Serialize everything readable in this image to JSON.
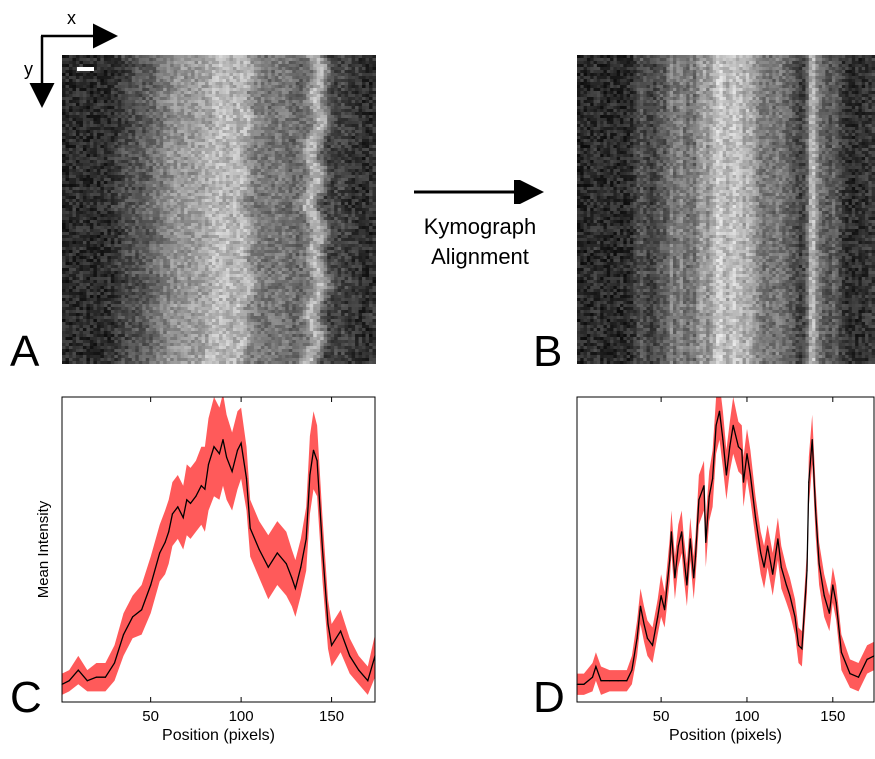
{
  "axes_indicator": {
    "x_label": "x",
    "y_label": "y"
  },
  "alignment_arrow": {
    "line1": "Kymograph",
    "line2": "Alignment"
  },
  "panels": {
    "A": "A",
    "B": "B",
    "C": "C",
    "D": "D"
  },
  "kymographs": {
    "A": {
      "aligned": false
    },
    "B": {
      "aligned": true
    }
  },
  "colors": {
    "band": "#ff5a5a",
    "mean_line": "#000000",
    "axes": "#000000"
  },
  "chart_data": [
    {
      "panel": "C",
      "type": "line",
      "xlabel": "Position (pixels)",
      "ylabel": "Mean Intensity",
      "xlim": [
        1,
        174
      ],
      "xticks": [
        50,
        100,
        150
      ],
      "x": [
        1,
        5,
        10,
        15,
        20,
        25,
        30,
        35,
        40,
        45,
        50,
        55,
        58,
        60,
        62,
        65,
        68,
        70,
        72,
        75,
        78,
        80,
        82,
        85,
        88,
        90,
        92,
        95,
        98,
        100,
        103,
        105,
        110,
        115,
        120,
        125,
        128,
        130,
        133,
        136,
        138,
        140,
        142,
        145,
        148,
        150,
        155,
        160,
        165,
        170,
        174
      ],
      "y": [
        0.05,
        0.06,
        0.09,
        0.06,
        0.07,
        0.07,
        0.11,
        0.19,
        0.24,
        0.26,
        0.33,
        0.42,
        0.45,
        0.48,
        0.53,
        0.55,
        0.52,
        0.57,
        0.56,
        0.58,
        0.61,
        0.6,
        0.67,
        0.72,
        0.7,
        0.74,
        0.69,
        0.65,
        0.71,
        0.73,
        0.63,
        0.49,
        0.43,
        0.38,
        0.42,
        0.39,
        0.35,
        0.32,
        0.38,
        0.46,
        0.64,
        0.71,
        0.68,
        0.43,
        0.22,
        0.16,
        0.2,
        0.13,
        0.09,
        0.06,
        0.13
      ],
      "band": [
        0.03,
        0.03,
        0.04,
        0.03,
        0.04,
        0.04,
        0.05,
        0.06,
        0.06,
        0.07,
        0.08,
        0.08,
        0.09,
        0.09,
        0.09,
        0.09,
        0.09,
        0.1,
        0.1,
        0.1,
        0.11,
        0.12,
        0.13,
        0.14,
        0.13,
        0.13,
        0.12,
        0.11,
        0.11,
        0.1,
        0.09,
        0.08,
        0.08,
        0.09,
        0.09,
        0.09,
        0.08,
        0.08,
        0.08,
        0.09,
        0.11,
        0.11,
        0.1,
        0.09,
        0.07,
        0.06,
        0.06,
        0.05,
        0.04,
        0.04,
        0.06
      ]
    },
    {
      "panel": "D",
      "type": "line",
      "xlabel": "Position (pixels)",
      "ylabel": "",
      "xlim": [
        1,
        174
      ],
      "xticks": [
        50,
        100,
        150
      ],
      "x": [
        1,
        5,
        10,
        12,
        15,
        20,
        25,
        30,
        33,
        36,
        38,
        40,
        42,
        45,
        48,
        50,
        52,
        55,
        56,
        58,
        60,
        62,
        63,
        65,
        67,
        69,
        70,
        72,
        75,
        76,
        78,
        80,
        82,
        84,
        86,
        88,
        90,
        92,
        95,
        97,
        98,
        100,
        102,
        105,
        108,
        110,
        112,
        115,
        118,
        120,
        123,
        125,
        128,
        130,
        132,
        135,
        136,
        138,
        140,
        142,
        145,
        148,
        150,
        152,
        155,
        160,
        165,
        170,
        174
      ],
      "y": [
        0.05,
        0.05,
        0.07,
        0.1,
        0.06,
        0.06,
        0.06,
        0.06,
        0.09,
        0.18,
        0.27,
        0.22,
        0.18,
        0.16,
        0.24,
        0.3,
        0.26,
        0.4,
        0.48,
        0.35,
        0.44,
        0.48,
        0.42,
        0.33,
        0.46,
        0.35,
        0.41,
        0.57,
        0.61,
        0.45,
        0.58,
        0.63,
        0.78,
        0.82,
        0.74,
        0.64,
        0.72,
        0.78,
        0.72,
        0.71,
        0.62,
        0.7,
        0.64,
        0.52,
        0.42,
        0.38,
        0.44,
        0.36,
        0.46,
        0.38,
        0.33,
        0.3,
        0.24,
        0.16,
        0.15,
        0.37,
        0.62,
        0.74,
        0.54,
        0.39,
        0.3,
        0.25,
        0.33,
        0.28,
        0.14,
        0.08,
        0.07,
        0.12,
        0.13
      ],
      "band": [
        0.03,
        0.03,
        0.04,
        0.04,
        0.04,
        0.03,
        0.03,
        0.03,
        0.04,
        0.05,
        0.05,
        0.05,
        0.05,
        0.05,
        0.05,
        0.06,
        0.05,
        0.06,
        0.06,
        0.06,
        0.06,
        0.06,
        0.06,
        0.06,
        0.06,
        0.06,
        0.06,
        0.07,
        0.07,
        0.07,
        0.07,
        0.08,
        0.08,
        0.08,
        0.08,
        0.07,
        0.07,
        0.08,
        0.07,
        0.07,
        0.07,
        0.07,
        0.07,
        0.06,
        0.06,
        0.06,
        0.06,
        0.06,
        0.06,
        0.06,
        0.05,
        0.05,
        0.05,
        0.05,
        0.05,
        0.06,
        0.07,
        0.07,
        0.07,
        0.06,
        0.06,
        0.05,
        0.05,
        0.05,
        0.05,
        0.04,
        0.04,
        0.04,
        0.04
      ]
    }
  ]
}
